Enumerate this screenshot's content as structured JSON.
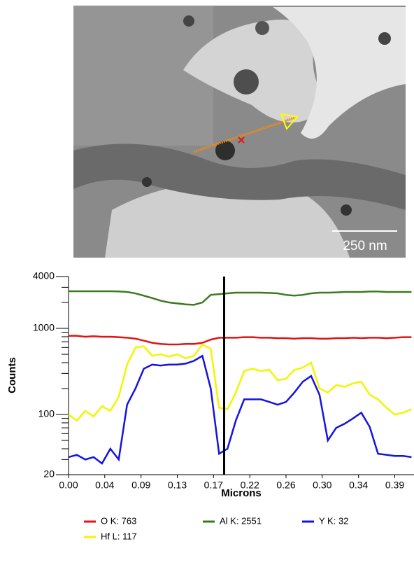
{
  "chart_data": {
    "type": "line",
    "log_scale_y": true,
    "image_scale_label": "250 nm",
    "xlabel": "Microns",
    "ylabel": "Counts",
    "x": [
      0,
      0.01,
      0.02,
      0.03,
      0.04,
      0.05,
      0.06,
      0.07,
      0.08,
      0.09,
      0.1,
      0.11,
      0.12,
      0.13,
      0.14,
      0.15,
      0.16,
      0.17,
      0.18,
      0.19,
      0.2,
      0.21,
      0.22,
      0.23,
      0.24,
      0.25,
      0.26,
      0.27,
      0.28,
      0.29,
      0.3,
      0.31,
      0.32,
      0.33,
      0.34,
      0.35,
      0.36,
      0.37,
      0.38,
      0.39,
      0.4,
      0.41
    ],
    "series": [
      {
        "name": "O K: 763",
        "color": "#e01414",
        "values": [
          820,
          820,
          800,
          810,
          800,
          800,
          790,
          780,
          760,
          720,
          680,
          660,
          650,
          650,
          660,
          660,
          680,
          740,
          780,
          780,
          780,
          790,
          790,
          780,
          780,
          770,
          770,
          760,
          770,
          770,
          760,
          760,
          770,
          770,
          780,
          770,
          780,
          780,
          770,
          780,
          790,
          790
        ]
      },
      {
        "name": "Al K: 2551",
        "color": "#3c7a1e",
        "values": [
          2700,
          2700,
          2700,
          2700,
          2700,
          2700,
          2690,
          2650,
          2550,
          2400,
          2250,
          2100,
          2000,
          1950,
          1900,
          1880,
          2000,
          2450,
          2500,
          2550,
          2600,
          2600,
          2600,
          2600,
          2580,
          2550,
          2450,
          2400,
          2450,
          2550,
          2600,
          2600,
          2620,
          2650,
          2650,
          2650,
          2680,
          2680,
          2650,
          2650,
          2650,
          2650
        ]
      },
      {
        "name": "Y K: 32",
        "color": "#1414e0",
        "values": [
          32,
          34,
          30,
          32,
          27,
          40,
          30,
          130,
          200,
          340,
          380,
          370,
          380,
          380,
          390,
          420,
          480,
          200,
          35,
          40,
          85,
          150,
          150,
          150,
          140,
          130,
          140,
          180,
          240,
          280,
          170,
          50,
          70,
          78,
          90,
          105,
          72,
          35,
          34,
          33,
          33,
          32
        ]
      },
      {
        "name": "Hf L: 117",
        "color": "#f4f400",
        "values": [
          100,
          85,
          110,
          95,
          125,
          110,
          160,
          380,
          600,
          620,
          480,
          500,
          470,
          500,
          450,
          480,
          650,
          580,
          120,
          115,
          180,
          320,
          340,
          320,
          330,
          250,
          260,
          330,
          350,
          400,
          200,
          180,
          220,
          210,
          230,
          240,
          170,
          150,
          120,
          100,
          105,
          115
        ]
      }
    ],
    "cursor_x": 0.186,
    "xlim": [
      0,
      0.413
    ],
    "ylim": [
      20,
      4000
    ],
    "xticks": [
      {
        "value": 0,
        "label": "0.00"
      },
      {
        "value": 0.0433,
        "label": "0.04"
      },
      {
        "value": 0.0867,
        "label": "0.09"
      },
      {
        "value": 0.13,
        "label": "0.13"
      },
      {
        "value": 0.1733,
        "label": "0.17"
      },
      {
        "value": 0.2167,
        "label": "0.22"
      },
      {
        "value": 0.26,
        "label": "0.26"
      },
      {
        "value": 0.3033,
        "label": "0.30"
      },
      {
        "value": 0.3467,
        "label": "0.34"
      },
      {
        "value": 0.39,
        "label": "0.39"
      }
    ],
    "yticks": [
      20,
      100,
      1000,
      4000
    ],
    "yminorticks": [
      30,
      40,
      50,
      60,
      70,
      80,
      90,
      200,
      300,
      400,
      500,
      600,
      700,
      800,
      900,
      2000,
      3000
    ]
  }
}
